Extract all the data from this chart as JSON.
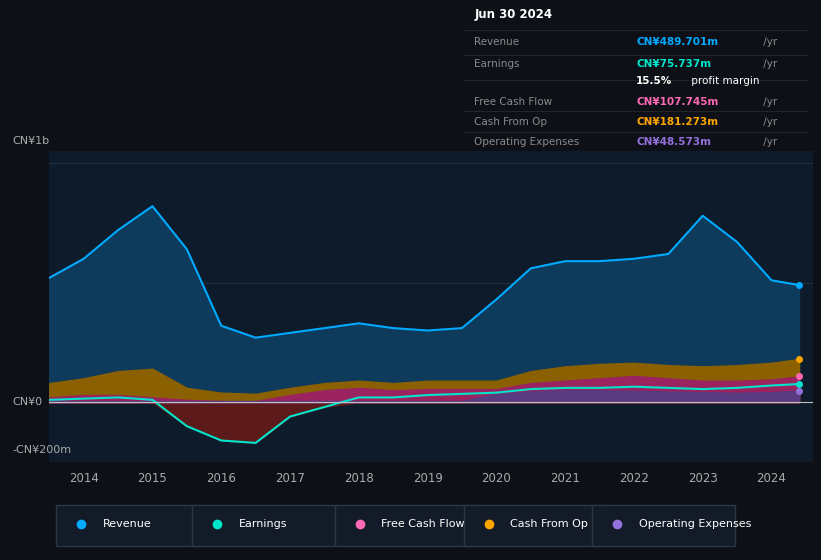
{
  "bg_color": "#0d1117",
  "plot_bg_color": "#0d1b2a",
  "grid_color": "#2a3a4a",
  "title_box": {
    "date": "Jun 30 2024",
    "rows": [
      {
        "label": "Revenue",
        "value": "CN¥489.701m",
        "value_color": "#00aaff"
      },
      {
        "label": "Earnings",
        "value": "CN¥75.737m",
        "value_color": "#00e5cc"
      },
      {
        "label": "",
        "value": "15.5% profit margin",
        "value_color": "#ffffff"
      },
      {
        "label": "Free Cash Flow",
        "value": "CN¥107.745m",
        "value_color": "#ff69b4"
      },
      {
        "label": "Cash From Op",
        "value": "CN¥181.273m",
        "value_color": "#ffa500"
      },
      {
        "label": "Operating Expenses",
        "value": "CN¥48.573m",
        "value_color": "#9370db"
      }
    ]
  },
  "ylabel": "CN¥1b",
  "y0label": "CN¥0",
  "yneg_label": "-CN¥200m",
  "ylim": [
    -250,
    1050
  ],
  "years": [
    2013.5,
    2014.0,
    2014.5,
    2015.0,
    2015.5,
    2016.0,
    2016.5,
    2017.0,
    2017.5,
    2018.0,
    2018.5,
    2019.0,
    2019.5,
    2020.0,
    2020.5,
    2021.0,
    2021.5,
    2022.0,
    2022.5,
    2023.0,
    2023.5,
    2024.0,
    2024.4
  ],
  "revenue": [
    520,
    600,
    720,
    820,
    640,
    320,
    270,
    290,
    310,
    330,
    310,
    300,
    310,
    430,
    560,
    590,
    590,
    600,
    620,
    780,
    670,
    510,
    490
  ],
  "earnings": [
    10,
    15,
    20,
    10,
    -100,
    -160,
    -170,
    -60,
    -20,
    20,
    20,
    30,
    35,
    40,
    55,
    60,
    60,
    65,
    60,
    55,
    60,
    70,
    76
  ],
  "free_cash_flow": [
    20,
    30,
    30,
    20,
    10,
    5,
    5,
    30,
    50,
    60,
    50,
    55,
    55,
    55,
    80,
    90,
    100,
    110,
    100,
    90,
    90,
    95,
    108
  ],
  "cash_from_op": [
    80,
    100,
    130,
    140,
    60,
    40,
    35,
    60,
    80,
    90,
    80,
    90,
    90,
    90,
    130,
    150,
    160,
    165,
    155,
    150,
    155,
    165,
    181
  ],
  "operating_exp": [
    5,
    5,
    5,
    5,
    5,
    5,
    5,
    5,
    5,
    5,
    5,
    5,
    5,
    35,
    45,
    50,
    50,
    48,
    45,
    42,
    40,
    42,
    49
  ],
  "revenue_fill_color": "#0e3a5c",
  "revenue_line_color": "#00aaff",
  "earnings_pos_color": "#0a3028",
  "earnings_neg_color": "#5c1a1a",
  "earnings_line_color": "#00e5cc",
  "free_cash_flow_color": "#9b2460",
  "cash_from_op_color": "#8b6000",
  "operating_exp_color": "#5a3a80",
  "legend_items": [
    {
      "label": "Revenue",
      "color": "#00aaff"
    },
    {
      "label": "Earnings",
      "color": "#00e5cc"
    },
    {
      "label": "Free Cash Flow",
      "color": "#ff69b4"
    },
    {
      "label": "Cash From Op",
      "color": "#ffa500"
    },
    {
      "label": "Operating Expenses",
      "color": "#9370db"
    }
  ],
  "xtick_years": [
    2014,
    2015,
    2016,
    2017,
    2018,
    2019,
    2020,
    2021,
    2022,
    2023,
    2024
  ],
  "xmin": 2013.5,
  "xmax": 2024.6
}
